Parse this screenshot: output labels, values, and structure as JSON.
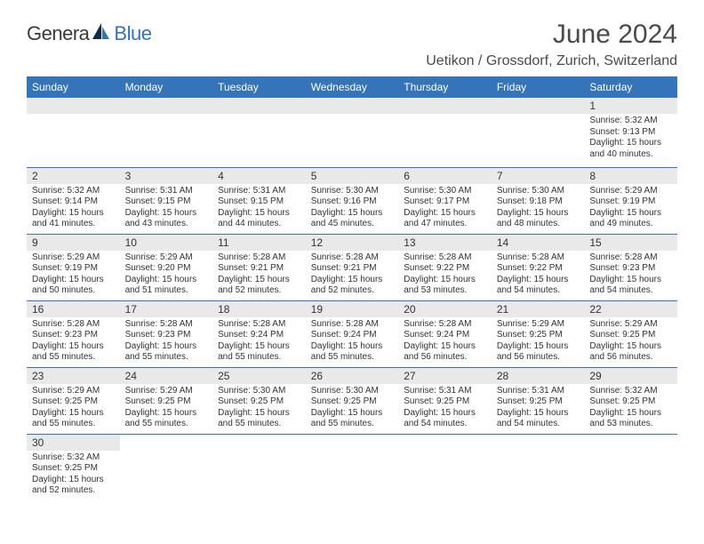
{
  "brand": {
    "part1": "Genera",
    "part2": "Blue"
  },
  "title": "June 2024",
  "location": "Uetikon / Grossdorf, Zurich, Switzerland",
  "header_bg": "#3574b8",
  "header_fg": "#ffffff",
  "daybar_bg": "#e9e9e9",
  "border_color": "#3574b8",
  "text_color": "#333333",
  "weekdays": [
    "Sunday",
    "Monday",
    "Tuesday",
    "Wednesday",
    "Thursday",
    "Friday",
    "Saturday"
  ],
  "weeks": [
    [
      null,
      null,
      null,
      null,
      null,
      null,
      {
        "n": "1",
        "rise": "5:32 AM",
        "set": "9:13 PM",
        "dl1": "15 hours",
        "dl2": "and 40 minutes."
      }
    ],
    [
      {
        "n": "2",
        "rise": "5:32 AM",
        "set": "9:14 PM",
        "dl1": "15 hours",
        "dl2": "and 41 minutes."
      },
      {
        "n": "3",
        "rise": "5:31 AM",
        "set": "9:15 PM",
        "dl1": "15 hours",
        "dl2": "and 43 minutes."
      },
      {
        "n": "4",
        "rise": "5:31 AM",
        "set": "9:15 PM",
        "dl1": "15 hours",
        "dl2": "and 44 minutes."
      },
      {
        "n": "5",
        "rise": "5:30 AM",
        "set": "9:16 PM",
        "dl1": "15 hours",
        "dl2": "and 45 minutes."
      },
      {
        "n": "6",
        "rise": "5:30 AM",
        "set": "9:17 PM",
        "dl1": "15 hours",
        "dl2": "and 47 minutes."
      },
      {
        "n": "7",
        "rise": "5:30 AM",
        "set": "9:18 PM",
        "dl1": "15 hours",
        "dl2": "and 48 minutes."
      },
      {
        "n": "8",
        "rise": "5:29 AM",
        "set": "9:19 PM",
        "dl1": "15 hours",
        "dl2": "and 49 minutes."
      }
    ],
    [
      {
        "n": "9",
        "rise": "5:29 AM",
        "set": "9:19 PM",
        "dl1": "15 hours",
        "dl2": "and 50 minutes."
      },
      {
        "n": "10",
        "rise": "5:29 AM",
        "set": "9:20 PM",
        "dl1": "15 hours",
        "dl2": "and 51 minutes."
      },
      {
        "n": "11",
        "rise": "5:28 AM",
        "set": "9:21 PM",
        "dl1": "15 hours",
        "dl2": "and 52 minutes."
      },
      {
        "n": "12",
        "rise": "5:28 AM",
        "set": "9:21 PM",
        "dl1": "15 hours",
        "dl2": "and 52 minutes."
      },
      {
        "n": "13",
        "rise": "5:28 AM",
        "set": "9:22 PM",
        "dl1": "15 hours",
        "dl2": "and 53 minutes."
      },
      {
        "n": "14",
        "rise": "5:28 AM",
        "set": "9:22 PM",
        "dl1": "15 hours",
        "dl2": "and 54 minutes."
      },
      {
        "n": "15",
        "rise": "5:28 AM",
        "set": "9:23 PM",
        "dl1": "15 hours",
        "dl2": "and 54 minutes."
      }
    ],
    [
      {
        "n": "16",
        "rise": "5:28 AM",
        "set": "9:23 PM",
        "dl1": "15 hours",
        "dl2": "and 55 minutes."
      },
      {
        "n": "17",
        "rise": "5:28 AM",
        "set": "9:23 PM",
        "dl1": "15 hours",
        "dl2": "and 55 minutes."
      },
      {
        "n": "18",
        "rise": "5:28 AM",
        "set": "9:24 PM",
        "dl1": "15 hours",
        "dl2": "and 55 minutes."
      },
      {
        "n": "19",
        "rise": "5:28 AM",
        "set": "9:24 PM",
        "dl1": "15 hours",
        "dl2": "and 55 minutes."
      },
      {
        "n": "20",
        "rise": "5:28 AM",
        "set": "9:24 PM",
        "dl1": "15 hours",
        "dl2": "and 56 minutes."
      },
      {
        "n": "21",
        "rise": "5:29 AM",
        "set": "9:25 PM",
        "dl1": "15 hours",
        "dl2": "and 56 minutes."
      },
      {
        "n": "22",
        "rise": "5:29 AM",
        "set": "9:25 PM",
        "dl1": "15 hours",
        "dl2": "and 56 minutes."
      }
    ],
    [
      {
        "n": "23",
        "rise": "5:29 AM",
        "set": "9:25 PM",
        "dl1": "15 hours",
        "dl2": "and 55 minutes."
      },
      {
        "n": "24",
        "rise": "5:29 AM",
        "set": "9:25 PM",
        "dl1": "15 hours",
        "dl2": "and 55 minutes."
      },
      {
        "n": "25",
        "rise": "5:30 AM",
        "set": "9:25 PM",
        "dl1": "15 hours",
        "dl2": "and 55 minutes."
      },
      {
        "n": "26",
        "rise": "5:30 AM",
        "set": "9:25 PM",
        "dl1": "15 hours",
        "dl2": "and 55 minutes."
      },
      {
        "n": "27",
        "rise": "5:31 AM",
        "set": "9:25 PM",
        "dl1": "15 hours",
        "dl2": "and 54 minutes."
      },
      {
        "n": "28",
        "rise": "5:31 AM",
        "set": "9:25 PM",
        "dl1": "15 hours",
        "dl2": "and 54 minutes."
      },
      {
        "n": "29",
        "rise": "5:32 AM",
        "set": "9:25 PM",
        "dl1": "15 hours",
        "dl2": "and 53 minutes."
      }
    ],
    [
      {
        "n": "30",
        "rise": "5:32 AM",
        "set": "9:25 PM",
        "dl1": "15 hours",
        "dl2": "and 52 minutes."
      },
      null,
      null,
      null,
      null,
      null,
      null
    ]
  ],
  "labels": {
    "sunrise": "Sunrise: ",
    "sunset": "Sunset: ",
    "daylight": "Daylight: "
  }
}
